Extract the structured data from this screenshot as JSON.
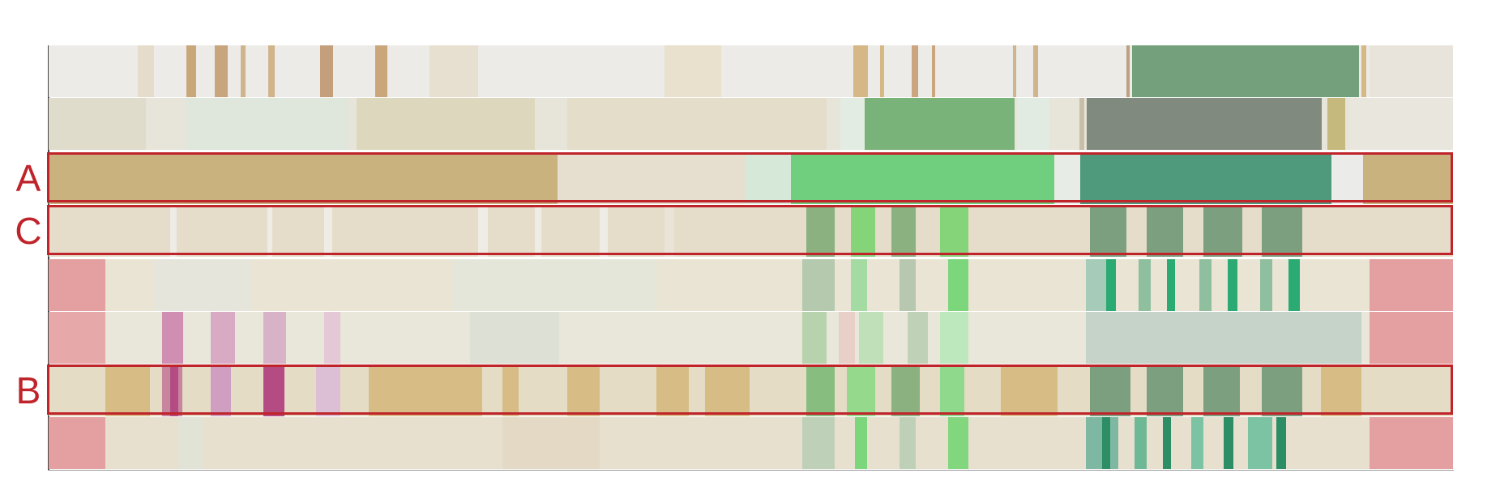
{
  "colors": {
    "neutral": "#eae3d4",
    "tan": "#c9b27d",
    "green_light": "#6fcf7e",
    "green_mid": "#7ab37a",
    "green_teal": "#4f9a7c",
    "green_dark": "#74a07c",
    "grey_green": "#808a7e",
    "pink": "#e49fa0",
    "magenta": "#b44c83",
    "highlight": "#c0242b"
  },
  "highlight_labels": [
    "A",
    "C",
    "B"
  ]
}
